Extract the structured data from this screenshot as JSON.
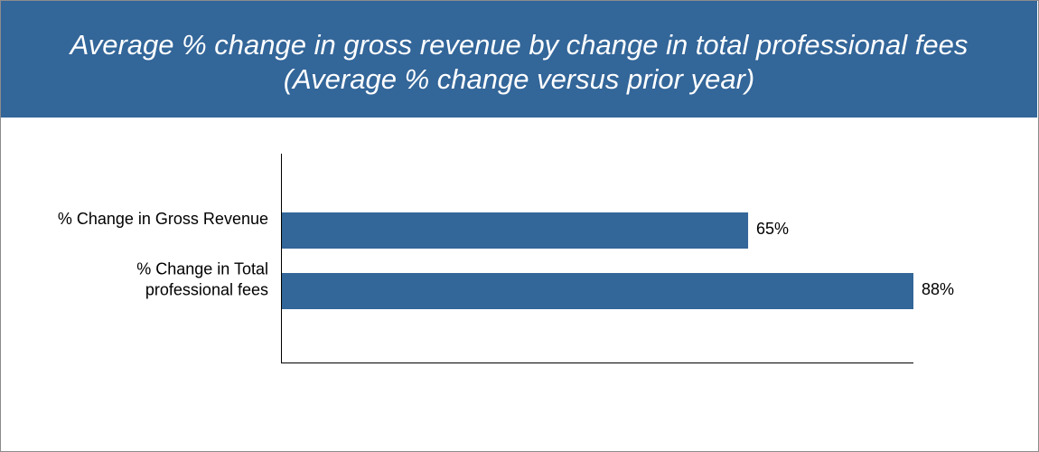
{
  "colors": {
    "header_bg": "#336699",
    "bar": "#336699",
    "axis": "#000000",
    "text": "#000000"
  },
  "chart_data": {
    "type": "bar",
    "orientation": "horizontal",
    "title": "Average % change in gross revenue by change in total professional fees",
    "subtitle": "(Average % change versus prior year)",
    "categories": [
      [
        "% Change in Gross Revenue"
      ],
      [
        "% Change in Total",
        "professional fees"
      ]
    ],
    "values": [
      65,
      88
    ],
    "value_labels": [
      "65%",
      "88%"
    ],
    "xlim": [
      0,
      88
    ],
    "grid": false,
    "legend": "none"
  }
}
